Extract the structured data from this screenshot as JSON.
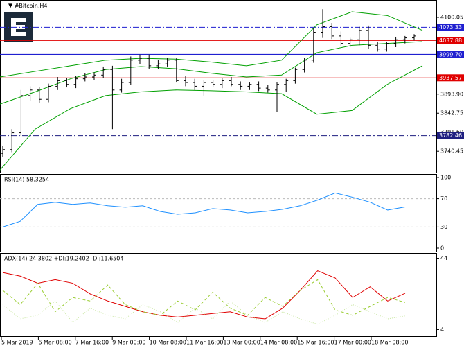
{
  "chart_data": {
    "type": "ohlc",
    "title": "#Bitcoin,H4",
    "x_labels": [
      "5 Mar 2019",
      "6 Mar 08:00",
      "7 Mar 16:00",
      "9 Mar 00:00",
      "10 Mar 08:00",
      "11 Mar 16:00",
      "13 Mar 00:00",
      "14 Mar 08:00",
      "15 Mar 16:00",
      "17 Mar 00:00",
      "18 Mar 08:00"
    ],
    "ylim": [
      3685,
      4141
    ],
    "yticks": [
      4100.05,
      {
        "value": 3893.9,
        "label": "3893.90"
      },
      3842.75,
      {
        "value": 3791.6,
        "label": "3791.60"
      },
      3740.45
    ],
    "open": [
      3735,
      3745,
      3790,
      3890,
      3905,
      3880,
      3915,
      3930,
      3920,
      3935,
      3940,
      3945,
      3960,
      3905,
      3925,
      3985,
      3990,
      3970,
      3975,
      3985,
      3930,
      3925,
      3915,
      3925,
      3920,
      3930,
      3920,
      3915,
      3920,
      3910,
      3905,
      3920,
      3930,
      3960,
      3985,
      4060,
      4075,
      4050,
      4030,
      4040,
      4065,
      4025,
      4015,
      4030,
      4040,
      4045
    ],
    "high": [
      3755,
      3800,
      3905,
      3915,
      3912,
      3922,
      3940,
      3938,
      3942,
      3950,
      3952,
      3968,
      3970,
      3935,
      3995,
      4000,
      4000,
      3985,
      3992,
      3990,
      3942,
      3935,
      3932,
      3932,
      3938,
      3940,
      3928,
      3925,
      3928,
      3918,
      3925,
      3935,
      3965,
      3992,
      4070,
      4122,
      4085,
      4062,
      4045,
      4075,
      4078,
      4035,
      4035,
      4048,
      4050,
      4055
    ],
    "low": [
      3725,
      3738,
      3782,
      3875,
      3870,
      3872,
      3905,
      3912,
      3910,
      3928,
      3932,
      3938,
      3800,
      3898,
      3918,
      3975,
      3962,
      3962,
      3968,
      3925,
      3915,
      3905,
      3890,
      3912,
      3910,
      3915,
      3905,
      3905,
      3902,
      3898,
      3845,
      3900,
      3922,
      3952,
      3978,
      4045,
      4042,
      4022,
      4020,
      4025,
      4015,
      4008,
      4008,
      4020,
      4030,
      4038
    ],
    "close": [
      3745,
      3790,
      3890,
      3905,
      3880,
      3915,
      3930,
      3920,
      3935,
      3940,
      3945,
      3960,
      3905,
      3925,
      3985,
      3990,
      3970,
      3975,
      3985,
      3930,
      3925,
      3915,
      3925,
      3920,
      3930,
      3920,
      3915,
      3920,
      3910,
      3905,
      3920,
      3930,
      3960,
      3985,
      4060,
      4075,
      4050,
      4030,
      4040,
      4065,
      4025,
      4015,
      4030,
      4040,
      4045,
      4050
    ],
    "bands": [
      {
        "color": "#00a000",
        "values": [
          3940,
          3955,
          3970,
          3985,
          3990,
          3988,
          3980,
          3970,
          3985,
          4080,
          4115,
          4105,
          4065
        ]
      },
      {
        "color": "#00a000",
        "values": [
          3867,
          3900,
          3935,
          3960,
          3968,
          3962,
          3950,
          3940,
          3945,
          4005,
          4025,
          4030,
          4035
        ]
      },
      {
        "color": "#00a000",
        "values": [
          3690,
          3800,
          3855,
          3890,
          3900,
          3905,
          3903,
          3900,
          3895,
          3840,
          3850,
          3920,
          3970
        ]
      }
    ],
    "levels": [
      {
        "value": 4073.33,
        "color": "#1f1fd0",
        "style": "dashdot"
      },
      {
        "value": 4037.88,
        "color": "#e00000",
        "style": "solid"
      },
      {
        "value": 3999.7,
        "label": "3999.70",
        "color": "#1f1fd0",
        "style": "thick"
      },
      {
        "value": 3937.57,
        "color": "#e00000",
        "style": "solid"
      },
      {
        "value": 3782.46,
        "color": "#1f1f80",
        "style": "dashdot"
      }
    ],
    "rsi": {
      "label": "RSI(14) 58.3254",
      "color": "#1e90ff",
      "ylim": [
        0,
        100
      ],
      "yticks": [
        100,
        70,
        30,
        0
      ],
      "levels": [
        70,
        30
      ],
      "values": [
        30,
        38,
        62,
        65,
        62,
        64,
        60,
        58,
        60,
        52,
        48,
        50,
        56,
        54,
        50,
        52,
        55,
        60,
        68,
        78,
        72,
        65,
        54,
        58.3254
      ]
    },
    "adx": {
      "label": "ADX(14) 24.3802 +DI:19.2402 -DI:11.6504",
      "ylim": [
        3,
        45
      ],
      "yticks": [
        44,
        4
      ],
      "series": [
        {
          "color": "#e00000",
          "style": "solid",
          "values": [
            36,
            34,
            30,
            32,
            30,
            24,
            20,
            17,
            14,
            12,
            11,
            12,
            13,
            14,
            11,
            10,
            16,
            26,
            37,
            33,
            22,
            28,
            20,
            24.3802
          ]
        },
        {
          "color": "#9acd32",
          "style": "dashed",
          "values": [
            26,
            18,
            30,
            14,
            22,
            20,
            29,
            18,
            14,
            12,
            20,
            15,
            25,
            16,
            12,
            22,
            17,
            26,
            32,
            15,
            12,
            17,
            22,
            19.2402
          ]
        },
        {
          "color": "#c8e6a0",
          "style": "dotted",
          "values": [
            18,
            10,
            12,
            20,
            8,
            16,
            12,
            10,
            18,
            14,
            8,
            16,
            10,
            20,
            12,
            8,
            14,
            10,
            7,
            12,
            18,
            14,
            10,
            11.6504
          ]
        }
      ]
    }
  }
}
